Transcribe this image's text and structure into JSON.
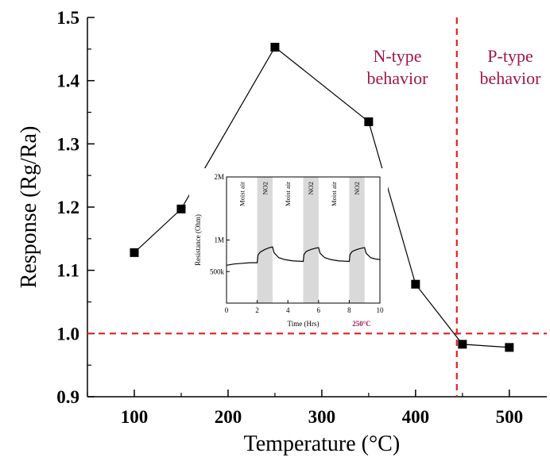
{
  "chart_data": [
    {
      "type": "line",
      "xlabel": "Temperature (°C)",
      "ylabel": "Response (Rg/Ra)",
      "xlim": [
        50,
        540
      ],
      "ylim": [
        0.9,
        1.5
      ],
      "xticks": [
        100,
        200,
        300,
        400,
        500
      ],
      "xtick_labels": [
        "100",
        "200",
        "300",
        "400",
        "500"
      ],
      "yticks": [
        0.9,
        1.0,
        1.1,
        1.2,
        1.3,
        1.4,
        1.5
      ],
      "ytick_labels": [
        "0.9",
        "1.0",
        "1.1",
        "1.2",
        "1.3",
        "1.4",
        "1.5"
      ],
      "series": [
        {
          "x": [
            100,
            150,
            250,
            350,
            400,
            450,
            500
          ],
          "y": [
            1.128,
            1.197,
            1.453,
            1.335,
            1.078,
            0.983,
            0.978
          ],
          "marker": "square",
          "color": "#000000"
        }
      ],
      "reference_lines": {
        "horizontal_y": 1.0,
        "vertical_x": 444,
        "color": "#e02020",
        "style": "dashed"
      },
      "annotations": {
        "n_type": [
          "N-type",
          "behavior"
        ],
        "p_type": [
          "P-type",
          "behavior"
        ],
        "color": "#a0164a"
      },
      "grid": false,
      "legend": "none"
    },
    {
      "type": "line",
      "xlabel": "Time (Hrs)",
      "ylabel": "Resistance (Ohm)",
      "xlim": [
        0,
        10
      ],
      "ylim": [
        0,
        2000000
      ],
      "xticks": [
        0,
        2,
        4,
        6,
        8,
        10
      ],
      "xtick_labels": [
        "0",
        "2",
        "4",
        "6",
        "8",
        "10"
      ],
      "yticks": [
        500000,
        1000000,
        2000000
      ],
      "ytick_labels": [
        "500k",
        "1M",
        "2M"
      ],
      "temperature_label": "250°C",
      "temperature_color": "#a0164a",
      "phase_labels": [
        "Moist air",
        "NO2",
        "Moist air",
        "NO2",
        "Moist air",
        "NO2"
      ],
      "shaded_intervals": [
        [
          2,
          3
        ],
        [
          5,
          6
        ],
        [
          8,
          9
        ]
      ],
      "shade_color": "#d9d9d9",
      "series": [
        {
          "x": [
            0,
            0.5,
            1,
            1.5,
            2,
            2.05,
            2.2,
            2.5,
            2.8,
            3.0,
            3.1,
            3.4,
            3.8,
            4.3,
            5.0,
            5.05,
            5.2,
            5.5,
            5.8,
            6.0,
            6.1,
            6.4,
            6.8,
            7.3,
            8.0,
            8.05,
            8.2,
            8.5,
            8.8,
            9.0,
            9.1,
            9.4,
            9.7,
            10
          ],
          "y": [
            600000,
            620000,
            630000,
            640000,
            640000,
            760000,
            810000,
            850000,
            880000,
            890000,
            800000,
            720000,
            690000,
            670000,
            660000,
            770000,
            820000,
            850000,
            870000,
            880000,
            790000,
            720000,
            690000,
            670000,
            660000,
            770000,
            820000,
            850000,
            870000,
            880000,
            790000,
            720000,
            700000,
            690000
          ],
          "color": "#000000"
        }
      ]
    }
  ]
}
